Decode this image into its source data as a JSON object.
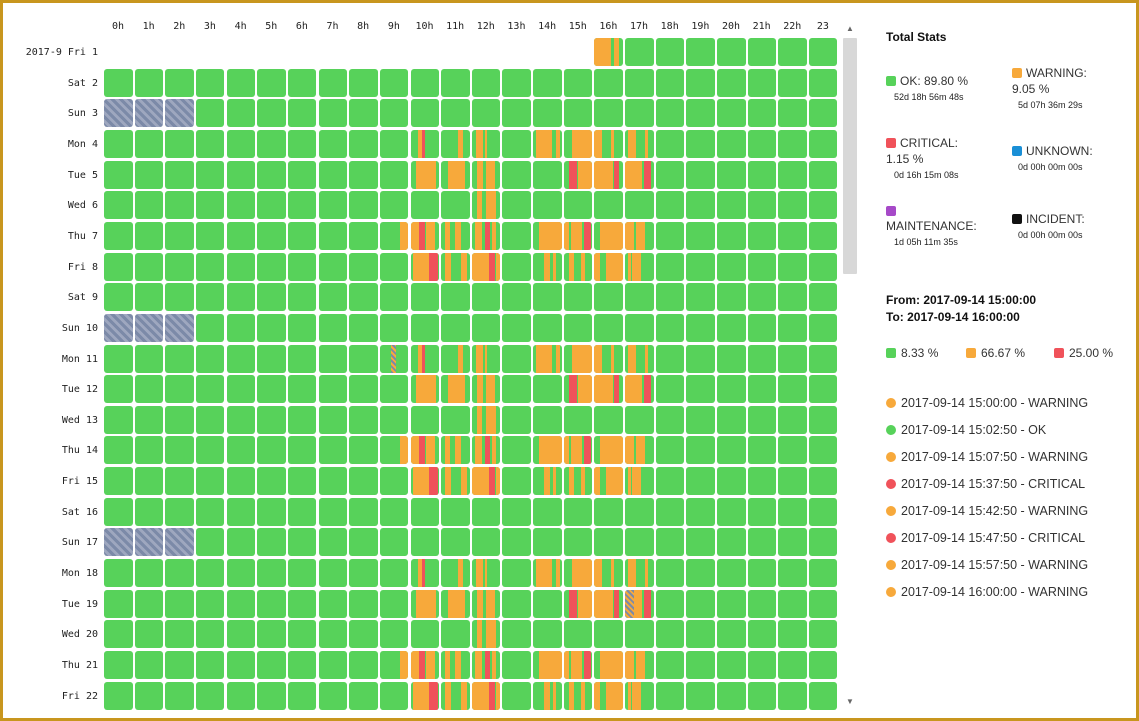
{
  "colors": {
    "ok": "#57d25a",
    "warning": "#f7a93b",
    "critical": "#f0525a",
    "unknown": "#1a8fd6",
    "maintenance": "#a649c8",
    "incident": "#111111"
  },
  "hours": [
    "0h",
    "1h",
    "2h",
    "3h",
    "4h",
    "5h",
    "6h",
    "7h",
    "8h",
    "9h",
    "10h",
    "11h",
    "12h",
    "13h",
    "14h",
    "15h",
    "16h",
    "17h",
    "18h",
    "19h",
    "20h",
    "21h",
    "22h",
    "23"
  ],
  "days": [
    {
      "label": "2017-9 Fri 1",
      "start": 16,
      "pattern": "partial"
    },
    {
      "label": "Sat 2",
      "pattern": "weekend"
    },
    {
      "label": "Sun 3",
      "pattern": "sunday"
    },
    {
      "label": "Mon 4",
      "pattern": "mon"
    },
    {
      "label": "Tue 5",
      "pattern": "tue"
    },
    {
      "label": "Wed 6",
      "pattern": "wed"
    },
    {
      "label": "Thu 7",
      "pattern": "thu"
    },
    {
      "label": "Fri 8",
      "pattern": "fri"
    },
    {
      "label": "Sat 9",
      "pattern": "weekend"
    },
    {
      "label": "Sun 10",
      "pattern": "sunday"
    },
    {
      "label": "Mon 11",
      "pattern": "mon2"
    },
    {
      "label": "Tue 12",
      "pattern": "tue"
    },
    {
      "label": "Wed 13",
      "pattern": "wed"
    },
    {
      "label": "Thu 14",
      "pattern": "thu"
    },
    {
      "label": "Fri 15",
      "pattern": "fri"
    },
    {
      "label": "Sat 16",
      "pattern": "weekend"
    },
    {
      "label": "Sun 17",
      "pattern": "sunday"
    },
    {
      "label": "Mon 18",
      "pattern": "mon"
    },
    {
      "label": "Tue 19",
      "pattern": "tue2"
    },
    {
      "label": "Wed 20",
      "pattern": "wed"
    },
    {
      "label": "Thu 21",
      "pattern": "thu"
    },
    {
      "label": "Fri 22",
      "pattern": "fri"
    }
  ],
  "panel": {
    "title": "Total Stats",
    "stats": [
      {
        "name": "ok",
        "label": "OK: 89.80 %",
        "duration": "52d 18h 56m 48s",
        "color": "#57d25a"
      },
      {
        "name": "warning",
        "label": "WARNING:",
        "label2": "9.05 %",
        "duration": "5d 07h 36m 29s",
        "color": "#f7a93b"
      },
      {
        "name": "critical",
        "label": "CRITICAL:",
        "label2": "1.15 %",
        "duration": "0d 16h 15m 08s",
        "color": "#f0525a"
      },
      {
        "name": "unknown",
        "label": "UNKNOWN:",
        "duration": "0d 00h 00m 00s",
        "color": "#1a8fd6"
      },
      {
        "name": "maintenance",
        "label": "MAINTENANCE:",
        "duration": "1d 05h 11m 35s",
        "color": "#a649c8"
      },
      {
        "name": "incident",
        "label": "INCIDENT:",
        "duration": "0d 00h 00m 00s",
        "color": "#111111"
      }
    ],
    "from": "From: 2017-09-14 15:00:00",
    "to": "To: 2017-09-14 16:00:00",
    "percentages": [
      {
        "label": "8.33 %",
        "color": "#57d25a"
      },
      {
        "label": "66.67 %",
        "color": "#f7a93b"
      },
      {
        "label": "25.00 %",
        "color": "#f0525a"
      }
    ],
    "events": [
      {
        "text": "2017-09-14 15:00:00 - WARNING",
        "color": "#f7a93b"
      },
      {
        "text": "2017-09-14 15:02:50 - OK",
        "color": "#57d25a"
      },
      {
        "text": "2017-09-14 15:07:50 - WARNING",
        "color": "#f7a93b"
      },
      {
        "text": "2017-09-14 15:37:50 - CRITICAL",
        "color": "#f0525a"
      },
      {
        "text": "2017-09-14 15:42:50 - WARNING",
        "color": "#f7a93b"
      },
      {
        "text": "2017-09-14 15:47:50 - CRITICAL",
        "color": "#f0525a"
      },
      {
        "text": "2017-09-14 15:57:50 - WARNING",
        "color": "#f7a93b"
      },
      {
        "text": "2017-09-14 16:00:00 - WARNING",
        "color": "#f7a93b"
      }
    ]
  }
}
